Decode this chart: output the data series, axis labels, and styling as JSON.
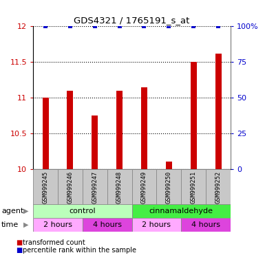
{
  "title": "GDS4321 / 1765191_s_at",
  "samples": [
    "GSM999245",
    "GSM999246",
    "GSM999247",
    "GSM999248",
    "GSM999249",
    "GSM999250",
    "GSM999251",
    "GSM999252"
  ],
  "bar_values": [
    11.0,
    11.1,
    10.75,
    11.1,
    11.15,
    10.1,
    11.5,
    11.62
  ],
  "percentile_values": [
    100,
    100,
    100,
    100,
    100,
    100,
    100,
    100
  ],
  "bar_color": "#cc0000",
  "dot_color": "#0000cc",
  "ylim_left": [
    10.0,
    12.0
  ],
  "ylim_right": [
    0,
    100
  ],
  "yticks_left": [
    10.0,
    10.5,
    11.0,
    11.5,
    12.0
  ],
  "yticks_right": [
    0,
    25,
    50,
    75,
    100
  ],
  "ytick_labels_left": [
    "10",
    "10.5",
    "11",
    "11.5",
    "12"
  ],
  "ytick_labels_right": [
    "0",
    "25",
    "50",
    "75",
    "100%"
  ],
  "agent_control_label": "control",
  "agent_cinnam_label": "cinnamaldehyde",
  "agent_control_color": "#bbffbb",
  "agent_cinnam_color": "#44ee44",
  "time_labels": [
    "2 hours",
    "4 hours",
    "2 hours",
    "4 hours"
  ],
  "time_color_light": "#ffaaff",
  "time_color_dark": "#dd44dd",
  "legend_red_label": "transformed count",
  "legend_blue_label": "percentile rank within the sample",
  "bar_bottom": 10.0,
  "bar_width": 0.25,
  "sample_box_color": "#c8c8c8",
  "sample_box_edge": "#888888"
}
